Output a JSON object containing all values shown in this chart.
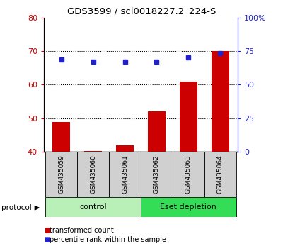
{
  "title": "GDS3599 / scl0018227.2_224-S",
  "samples": [
    "GSM435059",
    "GSM435060",
    "GSM435061",
    "GSM435062",
    "GSM435063",
    "GSM435064"
  ],
  "bar_values": [
    49.0,
    40.3,
    42.0,
    52.0,
    61.0,
    70.0
  ],
  "bar_bottom": 40.0,
  "dot_values_left": [
    67.5,
    66.8,
    66.8,
    66.8,
    68.2,
    69.3
  ],
  "ylim_left": [
    40,
    80
  ],
  "ylim_right": [
    0,
    100
  ],
  "yticks_left": [
    40,
    50,
    60,
    70,
    80
  ],
  "yticks_right": [
    0,
    25,
    50,
    75,
    100
  ],
  "yticklabels_right": [
    "0",
    "25",
    "50",
    "75",
    "100%"
  ],
  "bar_color": "#cc0000",
  "dot_color": "#2222cc",
  "protocol_groups": [
    {
      "label": "control",
      "start": 0,
      "end": 3,
      "color": "#b8f0b8"
    },
    {
      "label": "Eset depletion",
      "start": 3,
      "end": 6,
      "color": "#33dd55"
    }
  ],
  "protocol_label": "protocol",
  "legend_items": [
    {
      "color": "#cc0000",
      "label": "transformed count"
    },
    {
      "color": "#2222cc",
      "label": "percentile rank within the sample"
    }
  ],
  "left_tick_color": "#cc0000",
  "right_tick_color": "#2222cc",
  "sample_box_color": "#d0d0d0",
  "gridline_ticks": [
    50,
    60,
    70
  ]
}
